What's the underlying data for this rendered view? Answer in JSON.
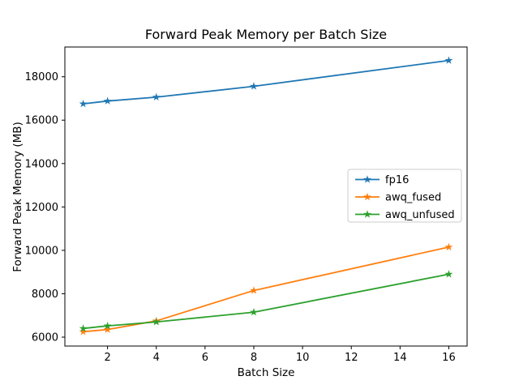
{
  "chart_data": {
    "type": "line",
    "title": "Forward Peak Memory per Batch Size",
    "xlabel": "Batch Size",
    "ylabel": "Forward Peak Memory (MB)",
    "x": [
      1,
      2,
      4,
      8,
      16
    ],
    "series": [
      {
        "name": "fp16",
        "color": "#1f77b4",
        "values": [
          16750,
          16880,
          17060,
          17560,
          18750
        ]
      },
      {
        "name": "awq_fused",
        "color": "#ff7f0e",
        "values": [
          6250,
          6350,
          6750,
          8150,
          10150
        ]
      },
      {
        "name": "awq_unfused",
        "color": "#2ca02c",
        "values": [
          6400,
          6520,
          6700,
          7150,
          8900
        ]
      }
    ],
    "marker": "star",
    "line_width": 1.8,
    "xlim": [
      0.25,
      16.75
    ],
    "ylim": [
      5590,
      19370
    ],
    "x_ticks": [
      2,
      4,
      6,
      8,
      10,
      12,
      14,
      16
    ],
    "y_ticks": [
      6000,
      8000,
      10000,
      12000,
      14000,
      16000,
      18000
    ],
    "grid": false,
    "legend_position": "center right",
    "axis_color": "#000000",
    "background_color": "#ffffff"
  }
}
